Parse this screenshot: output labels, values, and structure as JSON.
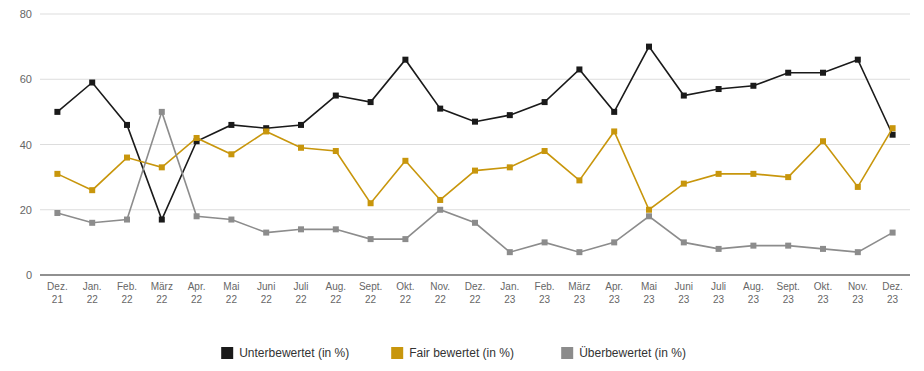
{
  "chart_data": {
    "type": "line",
    "categories": [
      "Dez.\n21",
      "Jan.\n22",
      "Feb.\n22",
      "März\n22",
      "Apr.\n22",
      "Mai\n22",
      "Juni\n22",
      "Juli\n22",
      "Aug.\n22",
      "Sept.\n22",
      "Okt.\n22",
      "Nov.\n22",
      "Dez.\n22",
      "Jan.\n23",
      "Feb.\n23",
      "März\n23",
      "Apr.\n23",
      "Mai\n23",
      "Juni\n23",
      "Juli\n23",
      "Aug.\n23",
      "Sept.\n23",
      "Okt.\n23",
      "Nov.\n23",
      "Dez.\n23"
    ],
    "series": [
      {
        "name": "Unterbewertet (in %)",
        "color": "#1a1a1a",
        "marker": "square",
        "values": [
          50,
          59,
          46,
          17,
          41,
          46,
          45,
          46,
          55,
          53,
          66,
          51,
          47,
          49,
          53,
          63,
          50,
          70,
          55,
          57,
          58,
          62,
          62,
          66,
          43
        ]
      },
      {
        "name": "Fair bewertet (in %)",
        "color": "#c8960c",
        "marker": "square",
        "values": [
          31,
          26,
          36,
          33,
          42,
          37,
          44,
          39,
          38,
          22,
          35,
          23,
          32,
          33,
          38,
          29,
          44,
          20,
          28,
          31,
          31,
          30,
          41,
          27,
          45
        ]
      },
      {
        "name": "Überbewertet (in %)",
        "color": "#8c8c8c",
        "marker": "square",
        "values": [
          19,
          16,
          17,
          50,
          18,
          17,
          13,
          14,
          14,
          11,
          11,
          20,
          16,
          7,
          10,
          7,
          10,
          18,
          10,
          8,
          9,
          9,
          8,
          7,
          13
        ]
      }
    ],
    "ylim": [
      0,
      80
    ],
    "yticks": [
      0,
      20,
      40,
      60,
      80
    ],
    "grid": true,
    "legend": "bottom"
  }
}
